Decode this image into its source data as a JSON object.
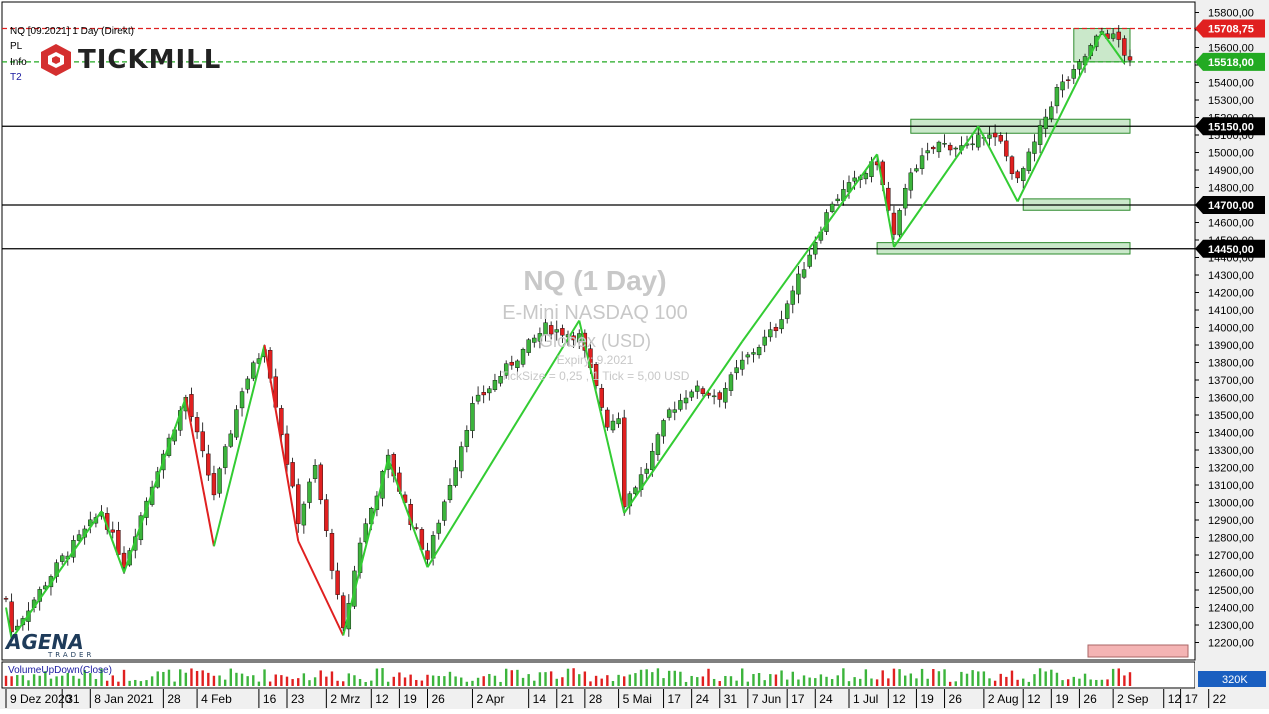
{
  "header": {
    "instrument_line": "NQ [09.2021] 1 Day (Direkt)",
    "rows": [
      "PL",
      "Info",
      "T2"
    ]
  },
  "logo": {
    "text": "TICKMILL"
  },
  "watermark": {
    "title": "NQ (1 Day)",
    "name": "E-Mini NASDAQ 100",
    "exchange": "Globex   (USD)",
    "expiry": "Expiry: 9.2021",
    "ticksize": "TickSize = 0,25 , 1 Tick = 5,00 USD"
  },
  "agena": {
    "name": "AGENA",
    "sub": "TRADER"
  },
  "indicator": {
    "label": "VolumeUpDown(Close)",
    "badge": "320K"
  },
  "colors": {
    "up": "#3cb43c",
    "down": "#e02020",
    "zigzag_green": "#33cc33",
    "zigzag_red": "#e02020",
    "resistance": "#e02020",
    "support_dashed": "#22aa22",
    "zone_fill": "#b8e0b8",
    "zone_stroke": "#2e8b2e"
  },
  "chart_data": {
    "type": "candlestick",
    "price_axis": {
      "ylim": [
        12100,
        15860
      ],
      "tick_values": [
        12200,
        12300,
        12400,
        12500,
        12600,
        12700,
        12800,
        12900,
        13000,
        13100,
        13200,
        13300,
        13400,
        13500,
        13600,
        13700,
        13800,
        13900,
        14000,
        14100,
        14200,
        14300,
        14400,
        14500,
        14600,
        14700,
        14800,
        14900,
        15000,
        15100,
        15200,
        15300,
        15400,
        15500,
        15600,
        15700,
        15800
      ],
      "tick_labels": [
        "12200,00",
        "12300,00",
        "12400,00",
        "12500,00",
        "12600,00",
        "12700,00",
        "12800,00",
        "12900,00",
        "13000,00",
        "13100,00",
        "13200,00",
        "13300,00",
        "13400,00",
        "13500,00",
        "13600,00",
        "13700,00",
        "13800,00",
        "13900,00",
        "14000,00",
        "14100,00",
        "14200,00",
        "14300,00",
        "14400,00",
        "14500,00",
        "14600,00",
        "14700,00",
        "14800,00",
        "14900,00",
        "15000,00",
        "15100,00",
        "15200,00",
        "15300,00",
        "15400,00",
        "15500,00",
        "15600,00",
        "15700,00",
        "15800,00"
      ]
    },
    "x_labels": [
      "9 Dez 2020",
      "31",
      "8 Jan 2021",
      "28",
      "4 Feb",
      "16",
      "23",
      "2 Mrz",
      "12",
      "19",
      "26",
      "2 Apr",
      "14",
      "21",
      "28",
      "5 Mai",
      "17",
      "24",
      "31",
      "7 Jun",
      "17",
      "24",
      "1 Jul",
      "12",
      "19",
      "26",
      "2 Aug",
      "12",
      "19",
      "26",
      "2 Sep",
      "12",
      "17",
      "22"
    ],
    "x_label_bar": [
      0,
      10,
      15,
      28,
      34,
      45,
      50,
      57,
      65,
      70,
      75,
      83,
      93,
      98,
      103,
      109,
      117,
      122,
      127,
      132,
      139,
      144,
      150,
      157,
      162,
      167,
      174,
      181,
      186,
      191,
      197,
      206,
      209,
      214
    ],
    "levels": [
      {
        "label": "15708,75",
        "value": 15708.75,
        "style": "dashed",
        "color": "#e02020"
      },
      {
        "label": "15518,00",
        "value": 15518,
        "style": "dashed",
        "color": "#22aa22"
      },
      {
        "label": "15150,00",
        "value": 15150,
        "style": "solid",
        "color": "#000000"
      },
      {
        "label": "14700,00",
        "value": 14700,
        "style": "solid",
        "color": "#000000"
      },
      {
        "label": "14450,00",
        "value": 14450,
        "style": "solid",
        "color": "#000000"
      }
    ],
    "zones": [
      {
        "x_bars": [
          190,
          200
        ],
        "y": [
          15518,
          15708.75
        ]
      },
      {
        "x_bars": [
          161,
          200
        ],
        "y": [
          15110,
          15190
        ]
      },
      {
        "x_bars": [
          181,
          200
        ],
        "y": [
          14670,
          14735
        ]
      },
      {
        "x_bars": [
          155,
          200
        ],
        "y": [
          14420,
          14485
        ]
      }
    ],
    "zigzag": [
      [
        0,
        12400
      ],
      [
        1,
        12220
      ],
      [
        17,
        12950
      ],
      [
        21,
        12600
      ],
      [
        32,
        13600
      ],
      [
        37,
        12750
      ],
      [
        46,
        13900
      ],
      [
        52,
        12780
      ],
      [
        60,
        12240
      ],
      [
        68,
        13250
      ],
      [
        75,
        12630
      ],
      [
        102,
        14040
      ],
      [
        110,
        12940
      ],
      [
        131,
        13920
      ],
      [
        155,
        14990
      ],
      [
        158,
        14460
      ],
      [
        173,
        15150
      ],
      [
        180,
        14720
      ],
      [
        195,
        15690
      ],
      [
        199,
        15510
      ]
    ],
    "anchors": [
      [
        0,
        12450
      ],
      [
        1,
        12260
      ],
      [
        10,
        12680
      ],
      [
        17,
        12950
      ],
      [
        21,
        12650
      ],
      [
        27,
        13200
      ],
      [
        32,
        13600
      ],
      [
        37,
        13050
      ],
      [
        42,
        13650
      ],
      [
        46,
        13900
      ],
      [
        52,
        12900
      ],
      [
        55,
        13200
      ],
      [
        60,
        12260
      ],
      [
        63,
        12780
      ],
      [
        68,
        13250
      ],
      [
        72,
        12900
      ],
      [
        75,
        12680
      ],
      [
        83,
        13550
      ],
      [
        90,
        13800
      ],
      [
        96,
        14000
      ],
      [
        102,
        13950
      ],
      [
        107,
        13450
      ],
      [
        109,
        13500
      ],
      [
        110,
        13000
      ],
      [
        114,
        13200
      ],
      [
        118,
        13520
      ],
      [
        122,
        13650
      ],
      [
        127,
        13610
      ],
      [
        131,
        13800
      ],
      [
        137,
        14000
      ],
      [
        141,
        14280
      ],
      [
        147,
        14720
      ],
      [
        152,
        14860
      ],
      [
        155,
        14950
      ],
      [
        158,
        14520
      ],
      [
        161,
        14900
      ],
      [
        166,
        15050
      ],
      [
        172,
        15020
      ],
      [
        173,
        15130
      ],
      [
        177,
        15050
      ],
      [
        180,
        14830
      ],
      [
        183,
        15050
      ],
      [
        187,
        15360
      ],
      [
        190,
        15450
      ],
      [
        193,
        15600
      ],
      [
        195,
        15690
      ],
      [
        198,
        15640
      ],
      [
        200,
        15500
      ]
    ],
    "volume_max": 320000
  }
}
